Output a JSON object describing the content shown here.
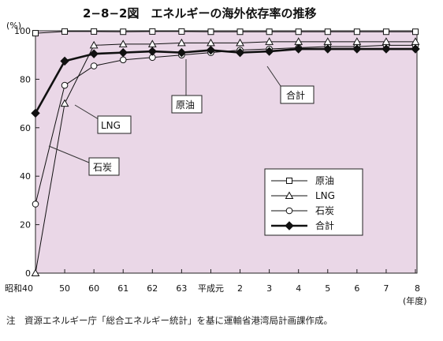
{
  "chart_data": {
    "type": "line",
    "title": "2−8−2図　エネルギーの海外依存率の推移",
    "ylabel": "(%)",
    "xlabel": "(年度)",
    "ylim": [
      0,
      100
    ],
    "yticks": [
      "0",
      "20",
      "40",
      "60",
      "80",
      "100"
    ],
    "categories": [
      "昭和40",
      "50",
      "60",
      "61",
      "62",
      "63",
      "平成元",
      "2",
      "3",
      "4",
      "5",
      "6",
      "7",
      "8"
    ],
    "series": [
      {
        "name": "原油",
        "marker": "square-open",
        "values": [
          99.0,
          99.7,
          99.7,
          99.6,
          99.7,
          99.7,
          99.6,
          99.6,
          99.6,
          99.6,
          99.6,
          99.6,
          99.6,
          99.6
        ]
      },
      {
        "name": "LNG",
        "marker": "triangle-open",
        "values": [
          0,
          70.0,
          94.0,
          94.5,
          94.5,
          95.0,
          95.0,
          95.0,
          95.5,
          95.5,
          95.5,
          95.5,
          95.5,
          95.5
        ]
      },
      {
        "name": "石炭",
        "marker": "circle-open",
        "values": [
          28.5,
          77.5,
          85.5,
          88.0,
          89.0,
          90.0,
          91.0,
          92.0,
          92.5,
          93.0,
          93.5,
          93.5,
          94.0,
          94.0
        ]
      },
      {
        "name": "合計",
        "marker": "diamond-filled",
        "values": [
          66.0,
          87.5,
          90.5,
          91.0,
          91.5,
          91.0,
          92.0,
          91.0,
          91.5,
          92.5,
          92.5,
          92.5,
          92.5,
          92.5
        ]
      }
    ],
    "legend": [
      "原油",
      "LNG",
      "石炭",
      "合計"
    ],
    "callouts": {
      "crude": "原油",
      "lng": "LNG",
      "coal": "石炭",
      "total": "合計"
    },
    "legend_position": "bottom-right",
    "background_color": "#ead7e7",
    "grid": false
  },
  "note": "注　資源エネルギー庁「総合エネルギー統計」を基に運輸省港湾局計画課作成。"
}
